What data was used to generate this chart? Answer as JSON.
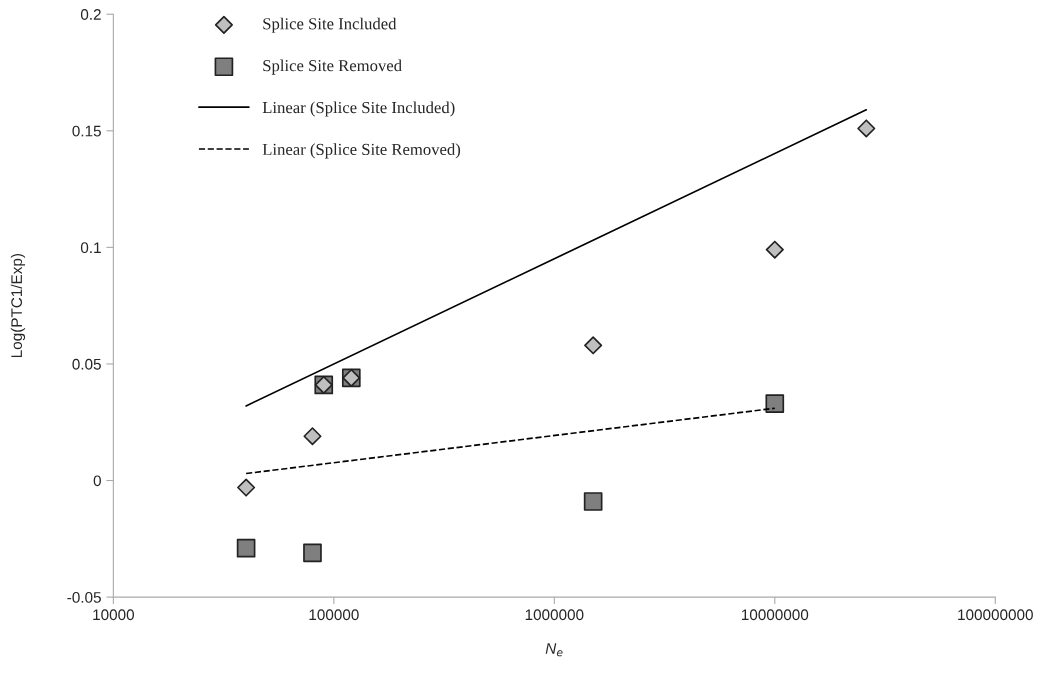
{
  "chart_data": {
    "type": "scatter",
    "xlabel": "N$_{e}$",
    "ylabel": "Log(PTC1/Exp)",
    "log": "x",
    "xlim": [
      10000,
      100000000
    ],
    "xticks": [
      10000,
      100000,
      1000000,
      10000000,
      100000000
    ],
    "ylim": [
      -0.05,
      0.2
    ],
    "yticks": [
      -0.05,
      0,
      0.05,
      0.1,
      0.15,
      0.2
    ],
    "grid": false,
    "legend": "top left",
    "series": [
      {
        "name": "Splice Site Included",
        "marker": "diamond",
        "color": "#bfbfbf",
        "x": [
          40000,
          80000,
          90000,
          120000,
          1500000,
          10000000,
          26000000
        ],
        "values": [
          -0.003,
          0.019,
          0.041,
          0.044,
          0.058,
          0.099,
          0.151
        ]
      },
      {
        "name": "Splice Site Removed",
        "marker": "square",
        "color": "#7f7f7f",
        "x": [
          40000,
          80000,
          90000,
          120000,
          1500000,
          10000000
        ],
        "values": [
          -0.029,
          -0.031,
          0.041,
          0.044,
          -0.009,
          0.033
        ]
      },
      {
        "name": "Linear (Splice Site Included)",
        "type": "line",
        "line_style": "solid",
        "color": "#000000",
        "x": [
          40000,
          26000000
        ],
        "values": [
          0.032,
          0.159
        ]
      },
      {
        "name": "Linear (Splice Site Removed)",
        "type": "line",
        "line_style": "dashed",
        "color": "#000000",
        "x": [
          40000,
          10000000
        ],
        "values": [
          0.003,
          0.031
        ]
      }
    ]
  }
}
